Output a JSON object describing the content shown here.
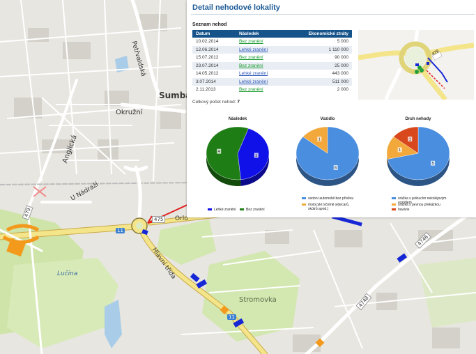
{
  "map": {
    "labels": {
      "petrvaldska": "Petřvaldská",
      "sumbal": "Sumbal",
      "okruzni": "Okružní",
      "anglicka": "Anglická",
      "u_nadrazi": "U Nádraží",
      "orlova": "Orlo",
      "hlavni_trida": "Hlavní třída",
      "stromovka": "Stromovka",
      "lucina": "Lučina"
    },
    "road_numbers": {
      "r11_west": "11",
      "r11_east": "11",
      "r475": "475",
      "r479": "479",
      "r4746": "4746",
      "r4748": "4748"
    },
    "colors": {
      "background": "#e8e6e0",
      "road_main": "#f4e58a",
      "road_minor": "#ffffff",
      "green": "#cfe4a8",
      "water": "#a9cde8",
      "accident_blue": "#1627d6",
      "accident_orange": "#f39a1c"
    }
  },
  "panel": {
    "title": "Detail nehodové lokality",
    "list_title": "Seznam nehod",
    "columns": [
      "Datum",
      "Následek",
      "Ekonomické ztráty"
    ],
    "rows": [
      {
        "date": "10.02.2014",
        "consequence": "Bez zranění",
        "loss": "5 000",
        "kind": "light"
      },
      {
        "date": "12.06.2014",
        "consequence": "Lehké zranění",
        "loss": "1 110 000",
        "kind": "medium"
      },
      {
        "date": "15.07.2012",
        "consequence": "Bez zranění",
        "loss": "90 000",
        "kind": "light"
      },
      {
        "date": "23.07.2014",
        "consequence": "Bez zranění",
        "loss": "25 000",
        "kind": "light"
      },
      {
        "date": "14.05.2012",
        "consequence": "Lehké zranění",
        "loss": "443 000",
        "kind": "medium"
      },
      {
        "date": "3.07.2014",
        "consequence": "Lehké zranění",
        "loss": "511 000",
        "kind": "medium"
      },
      {
        "date": "2.11.2013",
        "consequence": "Bez zranění",
        "loss": "2 000",
        "kind": "light"
      }
    ],
    "total_label": "Celkový počet nehod:",
    "total_value": "7",
    "thumb": {
      "road_number": "479"
    }
  },
  "chart_data": [
    {
      "type": "pie",
      "title": "Následek",
      "categories": [
        "Lehké zranění",
        "Bez zranění"
      ],
      "values": [
        3,
        4
      ],
      "colors": [
        "#1010e8",
        "#1e7d14"
      ],
      "data_labels": [
        "3",
        "4"
      ],
      "legend": "bottom"
    },
    {
      "type": "pie",
      "title": "Vozidlo",
      "categories": [
        "osobní automobil bez přívěsu",
        "motocykl (včetně sidecarů, skútrů apod.)"
      ],
      "values": [
        6,
        1
      ],
      "colors": [
        "#4a8ee0",
        "#f2a83a"
      ],
      "data_labels": [
        "6",
        "1"
      ],
      "legend": "bottom"
    },
    {
      "type": "pie",
      "title": "Druh nehody",
      "categories": [
        "srážka s jedoucím nekolejovým vozidlem",
        "srážka s pevnou překážkou",
        "havárie"
      ],
      "values": [
        5,
        1,
        1
      ],
      "colors": [
        "#4a8ee0",
        "#f2a83a",
        "#d9481c"
      ],
      "data_labels": [
        "5",
        "1",
        "1"
      ],
      "legend": "bottom"
    }
  ]
}
